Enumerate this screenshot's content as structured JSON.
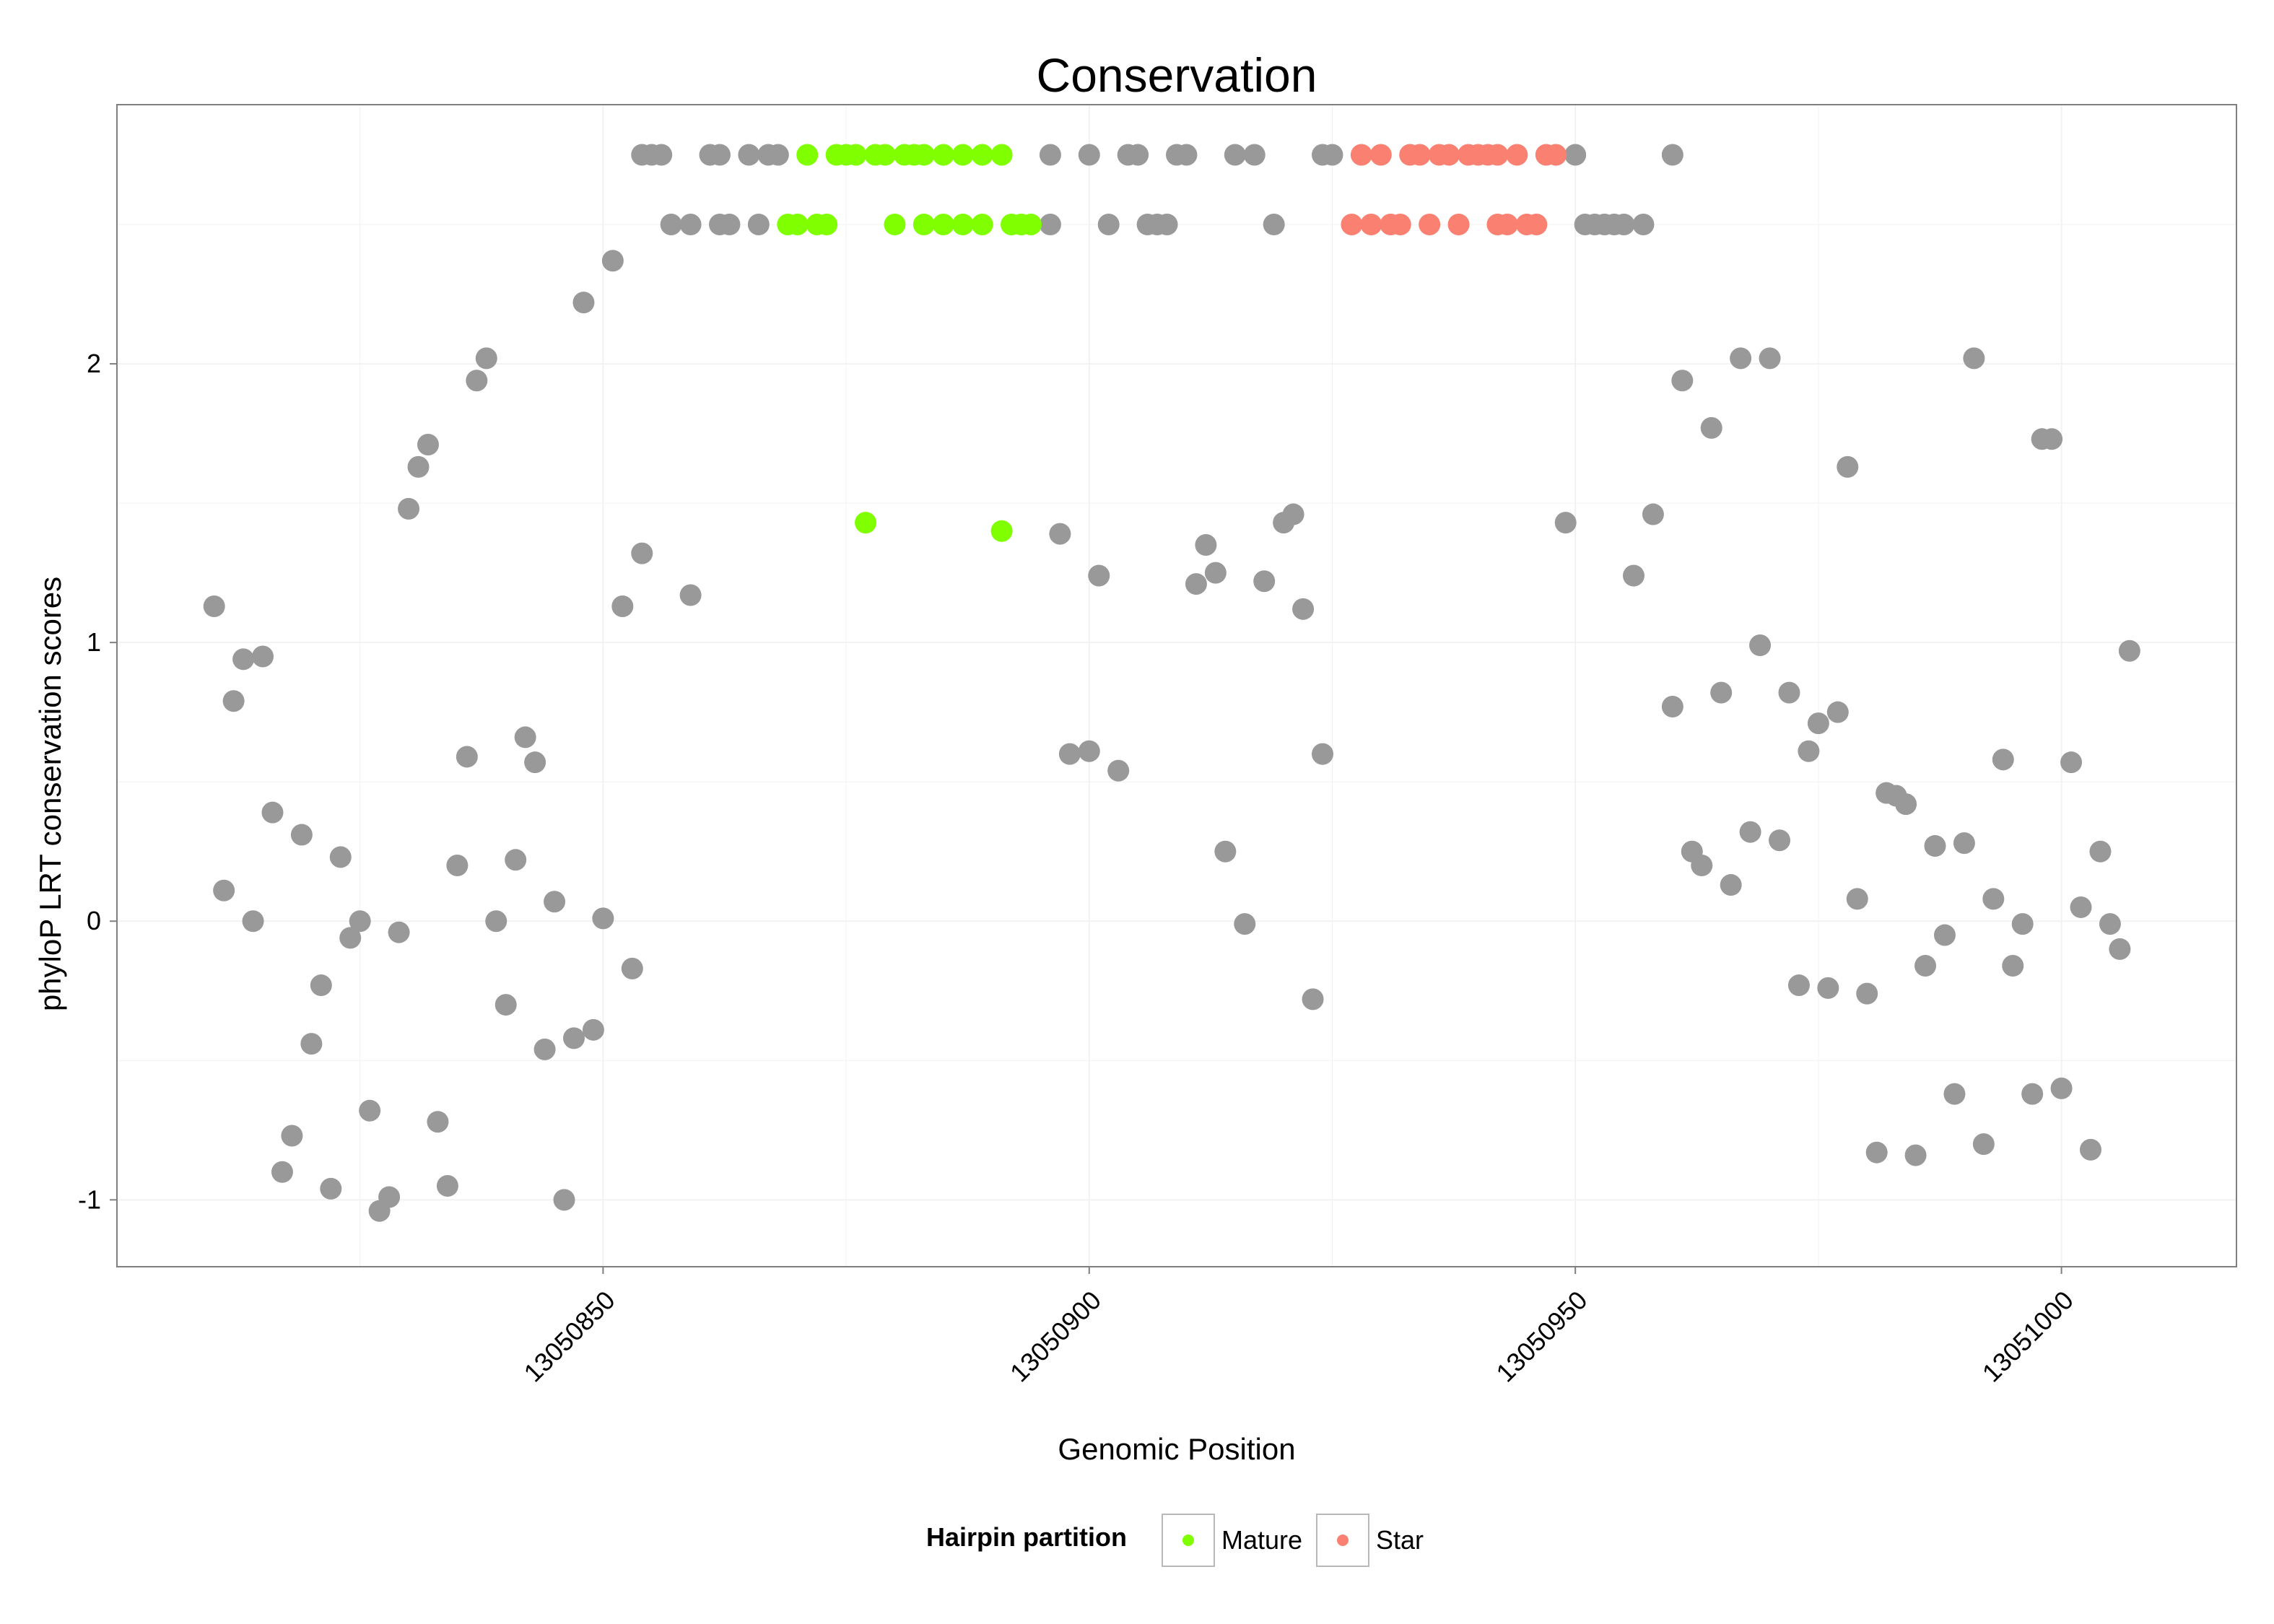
{
  "chart_data": {
    "type": "scatter",
    "title": "Conservation",
    "xlabel": "Genomic Position",
    "ylabel": "phyloP LRT conservation scores",
    "xlim": [
      13050800,
      13051018
    ],
    "ylim": [
      -1.24,
      2.93
    ],
    "x_ticks": [
      13050850,
      13050900,
      13050950,
      13051000
    ],
    "x_tick_labels": [
      "13050850",
      "13050900",
      "13050950",
      "13051000"
    ],
    "y_ticks": [
      -1,
      0,
      1,
      2
    ],
    "y_tick_labels": [
      "-1",
      "0",
      "1",
      "2"
    ],
    "grid": true,
    "legend": {
      "title": "Hairpin partition",
      "placement": "bottom",
      "entries": [
        {
          "label": "Mature",
          "color": "#7FFF00"
        },
        {
          "label": "Star",
          "color": "#FA8072"
        }
      ]
    },
    "colors": {
      "other": "#999999",
      "Mature": "#7FFF00",
      "Star": "#FA8072"
    },
    "series": [
      {
        "key": "other",
        "points": [
          [
            13050810,
            1.13
          ],
          [
            13050811,
            0.11
          ],
          [
            13050812,
            0.79
          ],
          [
            13050813,
            0.94
          ],
          [
            13050814,
            0.0
          ],
          [
            13050815,
            0.95
          ],
          [
            13050816,
            0.39
          ],
          [
            13050817,
            -0.9
          ],
          [
            13050818,
            -0.77
          ],
          [
            13050819,
            0.31
          ],
          [
            13050820,
            -0.44
          ],
          [
            13050821,
            -0.23
          ],
          [
            13050822,
            -0.96
          ],
          [
            13050823,
            0.23
          ],
          [
            13050824,
            -0.06
          ],
          [
            13050825,
            0.0
          ],
          [
            13050826,
            -0.68
          ],
          [
            13050827,
            -1.04
          ],
          [
            13050828,
            -0.99
          ],
          [
            13050829,
            -0.04
          ],
          [
            13050830,
            1.48
          ],
          [
            13050831,
            1.63
          ],
          [
            13050832,
            1.71
          ],
          [
            13050833,
            -0.72
          ],
          [
            13050834,
            -0.95
          ],
          [
            13050835,
            0.2
          ],
          [
            13050836,
            0.59
          ],
          [
            13050837,
            1.94
          ],
          [
            13050838,
            2.02
          ],
          [
            13050839,
            0.0
          ],
          [
            13050840,
            -0.3
          ],
          [
            13050841,
            0.22
          ],
          [
            13050842,
            0.66
          ],
          [
            13050843,
            0.57
          ],
          [
            13050844,
            -0.46
          ],
          [
            13050845,
            0.07
          ],
          [
            13050846,
            -1.0
          ],
          [
            13050847,
            -0.42
          ],
          [
            13050848,
            2.22
          ],
          [
            13050849,
            -0.39
          ],
          [
            13050850,
            0.01
          ],
          [
            13050851,
            2.37
          ],
          [
            13050852,
            1.13
          ],
          [
            13050853,
            -0.17
          ],
          [
            13050854,
            1.32
          ],
          [
            13050859,
            1.17
          ],
          [
            13050897,
            1.39
          ],
          [
            13050898,
            0.6
          ],
          [
            13050900,
            0.61
          ],
          [
            13050901,
            1.24
          ],
          [
            13050903,
            0.54
          ],
          [
            13050911,
            1.21
          ],
          [
            13050912,
            1.35
          ],
          [
            13050913,
            1.25
          ],
          [
            13050914,
            0.25
          ],
          [
            13050916,
            -0.01
          ],
          [
            13050918,
            1.22
          ],
          [
            13050920,
            1.43
          ],
          [
            13050921,
            1.46
          ],
          [
            13050922,
            1.12
          ],
          [
            13050923,
            -0.28
          ],
          [
            13050924,
            0.6
          ],
          [
            13050949,
            1.43
          ],
          [
            13050956,
            1.24
          ],
          [
            13050958,
            1.46
          ],
          [
            13050960,
            0.77
          ],
          [
            13050961,
            1.94
          ],
          [
            13050962,
            0.25
          ],
          [
            13050963,
            0.2
          ],
          [
            13050964,
            1.77
          ],
          [
            13050965,
            0.82
          ],
          [
            13050966,
            0.13
          ],
          [
            13050967,
            2.02
          ],
          [
            13050968,
            0.32
          ],
          [
            13050969,
            0.99
          ],
          [
            13050970,
            2.02
          ],
          [
            13050971,
            0.29
          ],
          [
            13050972,
            0.82
          ],
          [
            13050973,
            -0.23
          ],
          [
            13050974,
            0.61
          ],
          [
            13050975,
            0.71
          ],
          [
            13050976,
            -0.24
          ],
          [
            13050977,
            0.75
          ],
          [
            13050978,
            1.63
          ],
          [
            13050979,
            0.08
          ],
          [
            13050980,
            -0.26
          ],
          [
            13050981,
            -0.83
          ],
          [
            13050982,
            0.46
          ],
          [
            13050983,
            0.45
          ],
          [
            13050984,
            0.42
          ],
          [
            13050985,
            -0.84
          ],
          [
            13050986,
            -0.16
          ],
          [
            13050987,
            0.27
          ],
          [
            13050988,
            -0.05
          ],
          [
            13050989,
            -0.62
          ],
          [
            13050990,
            0.28
          ],
          [
            13050991,
            2.02
          ],
          [
            13050992,
            -0.8
          ],
          [
            13050993,
            0.08
          ],
          [
            13050994,
            0.58
          ],
          [
            13050995,
            -0.16
          ],
          [
            13050996,
            -0.01
          ],
          [
            13050997,
            -0.62
          ],
          [
            13050998,
            1.73
          ],
          [
            13050999,
            1.73
          ],
          [
            13051000,
            -0.6
          ],
          [
            13051001,
            0.57
          ],
          [
            13051002,
            0.05
          ],
          [
            13051003,
            -0.82
          ],
          [
            13051004,
            0.25
          ],
          [
            13051005,
            -0.01
          ],
          [
            13051006,
            -0.1
          ],
          [
            13051007,
            0.97
          ],
          [
            13050854,
            2.75
          ],
          [
            13050855,
            2.75
          ],
          [
            13050856,
            2.75
          ],
          [
            13050861,
            2.75
          ],
          [
            13050862,
            2.75
          ],
          [
            13050865,
            2.75
          ],
          [
            13050867,
            2.75
          ],
          [
            13050868,
            2.75
          ],
          [
            13050896,
            2.75
          ],
          [
            13050900,
            2.75
          ],
          [
            13050904,
            2.75
          ],
          [
            13050905,
            2.75
          ],
          [
            13050909,
            2.75
          ],
          [
            13050910,
            2.75
          ],
          [
            13050915,
            2.75
          ],
          [
            13050917,
            2.75
          ],
          [
            13050924,
            2.75
          ],
          [
            13050925,
            2.75
          ],
          [
            13050950,
            2.75
          ],
          [
            13050960,
            2.75
          ],
          [
            13050857,
            2.5
          ],
          [
            13050859,
            2.5
          ],
          [
            13050862,
            2.5
          ],
          [
            13050863,
            2.5
          ],
          [
            13050866,
            2.5
          ],
          [
            13050896,
            2.5
          ],
          [
            13050902,
            2.5
          ],
          [
            13050906,
            2.5
          ],
          [
            13050907,
            2.5
          ],
          [
            13050908,
            2.5
          ],
          [
            13050919,
            2.5
          ],
          [
            13050951,
            2.5
          ],
          [
            13050952,
            2.5
          ],
          [
            13050953,
            2.5
          ],
          [
            13050954,
            2.5
          ],
          [
            13050955,
            2.5
          ],
          [
            13050957,
            2.5
          ]
        ]
      },
      {
        "key": "Mature",
        "name": "Mature",
        "points": [
          [
            13050877,
            1.43
          ],
          [
            13050891,
            1.4
          ],
          [
            13050871,
            2.75
          ],
          [
            13050874,
            2.75
          ],
          [
            13050875,
            2.75
          ],
          [
            13050876,
            2.75
          ],
          [
            13050878,
            2.75
          ],
          [
            13050879,
            2.75
          ],
          [
            13050881,
            2.75
          ],
          [
            13050882,
            2.75
          ],
          [
            13050883,
            2.75
          ],
          [
            13050885,
            2.75
          ],
          [
            13050887,
            2.75
          ],
          [
            13050889,
            2.75
          ],
          [
            13050891,
            2.75
          ],
          [
            13050869,
            2.5
          ],
          [
            13050870,
            2.5
          ],
          [
            13050872,
            2.5
          ],
          [
            13050873,
            2.5
          ],
          [
            13050880,
            2.5
          ],
          [
            13050883,
            2.5
          ],
          [
            13050885,
            2.5
          ],
          [
            13050887,
            2.5
          ],
          [
            13050889,
            2.5
          ],
          [
            13050892,
            2.5
          ],
          [
            13050893,
            2.5
          ],
          [
            13050894,
            2.5
          ]
        ]
      },
      {
        "key": "Star",
        "name": "Star",
        "points": [
          [
            13050928,
            2.75
          ],
          [
            13050930,
            2.75
          ],
          [
            13050933,
            2.75
          ],
          [
            13050934,
            2.75
          ],
          [
            13050936,
            2.75
          ],
          [
            13050937,
            2.75
          ],
          [
            13050939,
            2.75
          ],
          [
            13050940,
            2.75
          ],
          [
            13050941,
            2.75
          ],
          [
            13050942,
            2.75
          ],
          [
            13050944,
            2.75
          ],
          [
            13050947,
            2.75
          ],
          [
            13050948,
            2.75
          ],
          [
            13050927,
            2.5
          ],
          [
            13050929,
            2.5
          ],
          [
            13050931,
            2.5
          ],
          [
            13050932,
            2.5
          ],
          [
            13050935,
            2.5
          ],
          [
            13050938,
            2.5
          ],
          [
            13050942,
            2.5
          ],
          [
            13050943,
            2.5
          ],
          [
            13050945,
            2.5
          ],
          [
            13050946,
            2.5
          ]
        ]
      }
    ]
  }
}
